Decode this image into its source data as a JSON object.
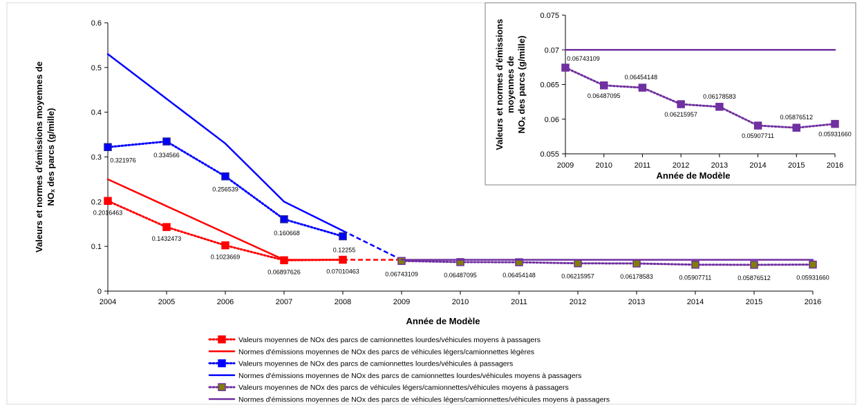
{
  "chart_data": [
    {
      "type": "line",
      "xlabel": "Année de Modèle",
      "ylabel_line1": "Valeurs et normes d'émissions moyennes de",
      "ylabel_line2": "NOₓ des parcs (g/mille)",
      "ylim": [
        0,
        0.6
      ],
      "yticks": [
        "0",
        "0.1",
        "0.2",
        "0.3",
        "0.4",
        "0.5",
        "0.6"
      ],
      "x": [
        2004,
        2005,
        2006,
        2007,
        2008,
        2009,
        2010,
        2011,
        2012,
        2013,
        2014,
        2015,
        2016
      ],
      "legend_position": "bottom",
      "series": [
        {
          "name": "Valeurs moyennes de NOx des parcs de camionnettes lourdes/véhicules moyens à passagers",
          "color": "#ff0000",
          "style": "dotted",
          "marker": "square",
          "x": [
            2004,
            2005,
            2006,
            2007,
            2008
          ],
          "values": [
            0.2016463,
            0.1432473,
            0.1023669,
            0.06897626,
            0.07010463
          ],
          "labels": [
            "0.2016463",
            "0.1432473",
            "0.1023669",
            "0.06897626",
            "0.07010463"
          ]
        },
        {
          "name": "Normes d'émissions moyennes de NOx des parcs de véhicules légers/camionnettes légères",
          "color": "#ff0000",
          "style": "solid",
          "marker": "none",
          "x": [
            2004,
            2005,
            2006,
            2007,
            2008
          ],
          "values": [
            0.25,
            0.19,
            0.13,
            0.07,
            0.07
          ]
        },
        {
          "name": "Valeurs moyennes de NOx des parcs de camionnettes lourdes/véhicules à passagers",
          "color": "#0000ff",
          "style": "dotted",
          "marker": "square",
          "x": [
            2004,
            2005,
            2006,
            2007,
            2008
          ],
          "values": [
            0.321976,
            0.334566,
            0.256539,
            0.160668,
            0.12255
          ],
          "labels": [
            "0.321976",
            "0.334566",
            "0.256539",
            "0.160668",
            "0.12255"
          ]
        },
        {
          "name": "Normes d'émissions moyennes de NOx des parcs de camionnettes lourdes/véhicules moyens à passagers",
          "color": "#0000ff",
          "style": "solid",
          "marker": "none",
          "x": [
            2004,
            2005,
            2006,
            2007,
            2008
          ],
          "values": [
            0.53,
            0.43,
            0.33,
            0.2,
            0.135
          ]
        },
        {
          "name": "Valeurs moyennes de NOx des parcs de véhicules légers/camionnettes/véhicules moyens à passagers",
          "color": "#7030a0",
          "style": "dotted",
          "marker": "square",
          "x": [
            2009,
            2010,
            2011,
            2012,
            2013,
            2014,
            2015,
            2016
          ],
          "values": [
            0.06743109,
            0.06487095,
            0.06454148,
            0.06215957,
            0.06178583,
            0.05907711,
            0.05876512,
            0.0593166
          ],
          "labels": [
            "0.06743109",
            "0.06487095",
            "0.06454148",
            "0.06215957",
            "0.06178583",
            "0.05907711",
            "0.05876512",
            "0.05931660"
          ]
        },
        {
          "name": "Normes d'émissions moyennes de NOx des parcs de véhicules légers/camionnettes/véhicules moyens à passagers",
          "color": "#7030a0",
          "style": "solid",
          "marker": "none",
          "x": [
            2009,
            2010,
            2011,
            2012,
            2013,
            2014,
            2015,
            2016
          ],
          "values": [
            0.07,
            0.07,
            0.07,
            0.07,
            0.07,
            0.07,
            0.07,
            0.07
          ]
        }
      ],
      "transitions": [
        {
          "color": "#ff0000",
          "from": [
            2008,
            0.07010463
          ],
          "to": [
            2009,
            0.07
          ]
        },
        {
          "color": "#0000ff",
          "from": [
            2008,
            0.135
          ],
          "to": [
            2009,
            0.07
          ]
        }
      ]
    },
    {
      "type": "line",
      "xlabel": "Année de Modèle",
      "ylabel_line1": "Valeurs et normes d'émissions",
      "ylabel_line2": "moyennes de",
      "ylabel_line3": "NOₓ des parcs (g/mille)",
      "ylim": [
        0.055,
        0.075
      ],
      "yticks": [
        "0.055",
        "0.06",
        "0.065",
        "0.07",
        "0.075"
      ],
      "x": [
        2009,
        2010,
        2011,
        2012,
        2013,
        2014,
        2015,
        2016
      ],
      "series": [
        {
          "color": "#7030a0",
          "style": "dotted",
          "marker": "square",
          "values": [
            0.06743109,
            0.06487095,
            0.06454148,
            0.06215957,
            0.06178583,
            0.05907711,
            0.05876512,
            0.0593166
          ],
          "labels": [
            "0.06743109",
            "0.06487095",
            "0.06454148",
            "0.06215957",
            "0.06178583",
            "0.05907711",
            "0.05876512",
            "0.05931660"
          ]
        },
        {
          "color": "#7030a0",
          "style": "solid",
          "marker": "none",
          "values": [
            0.07,
            0.07,
            0.07,
            0.07,
            0.07,
            0.07,
            0.07,
            0.07
          ]
        }
      ]
    }
  ]
}
